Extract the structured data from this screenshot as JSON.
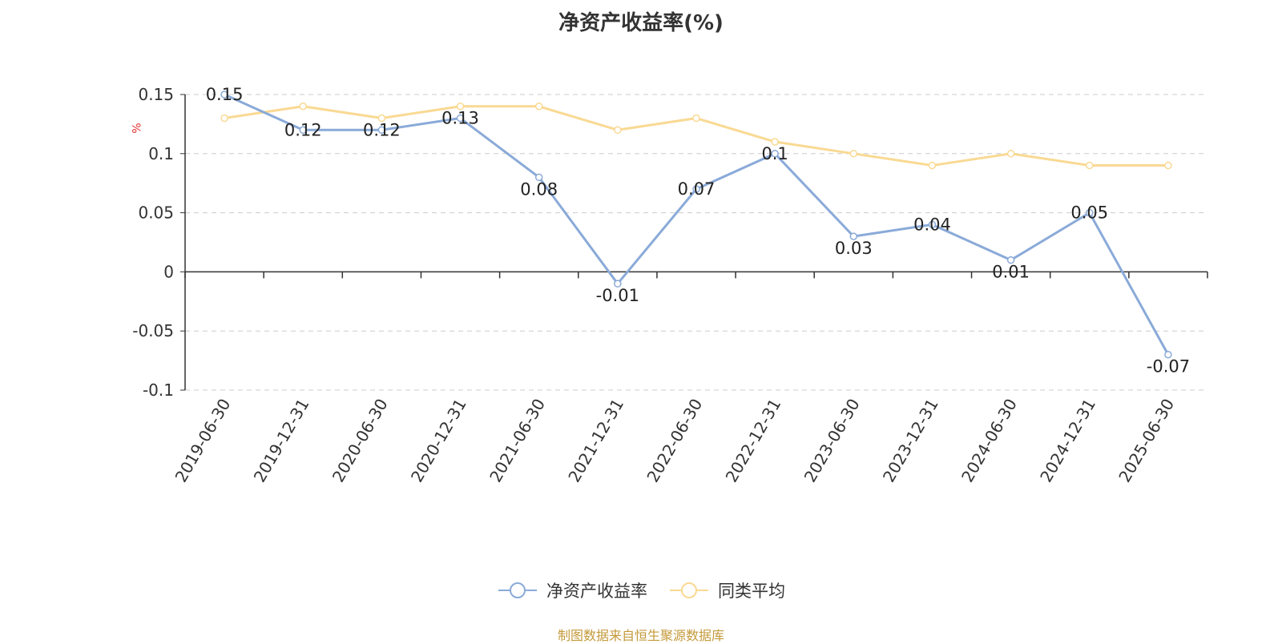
{
  "chart_title": "净资产收益率(%)",
  "source_text": "制图数据来自恒生聚源数据库",
  "colors": {
    "series_main": "#8aaad8",
    "series_avg": "#f9d993",
    "source": "#c49a3a",
    "ylabel": "#e03030"
  },
  "chart_data": {
    "type": "line",
    "title": "净资产收益率(%)",
    "ylabel": "%",
    "ylim": [
      -0.1,
      0.15
    ],
    "yticks": [
      -0.1,
      -0.05,
      0,
      0.05,
      0.1,
      0.15
    ],
    "ytick_labels": [
      "-0.1",
      "-0.05",
      "0",
      "0.05",
      "0.1",
      "0.15"
    ],
    "grid": true,
    "legend_position": "bottom",
    "categories": [
      "2019-06-30",
      "2019-12-31",
      "2020-06-30",
      "2020-12-31",
      "2021-06-30",
      "2021-12-31",
      "2022-06-30",
      "2022-12-31",
      "2023-06-30",
      "2023-12-31",
      "2024-06-30",
      "2024-12-31",
      "2025-06-30"
    ],
    "series": [
      {
        "name": "净资产收益率",
        "values": [
          0.15,
          0.12,
          0.12,
          0.13,
          0.08,
          -0.01,
          0.07,
          0.1,
          0.03,
          0.04,
          0.01,
          0.05,
          -0.07
        ],
        "labels": [
          "0.15",
          "0.12",
          "0.12",
          "0.13",
          "0.08",
          "-0.01",
          "0.07",
          "0.1",
          "0.03",
          "0.04",
          "0.01",
          "0.05",
          "-0.07"
        ]
      },
      {
        "name": "同类平均",
        "values": [
          0.13,
          0.14,
          0.13,
          0.14,
          0.14,
          0.12,
          0.13,
          0.11,
          0.1,
          0.09,
          0.1,
          0.09,
          0.09
        ]
      }
    ]
  }
}
